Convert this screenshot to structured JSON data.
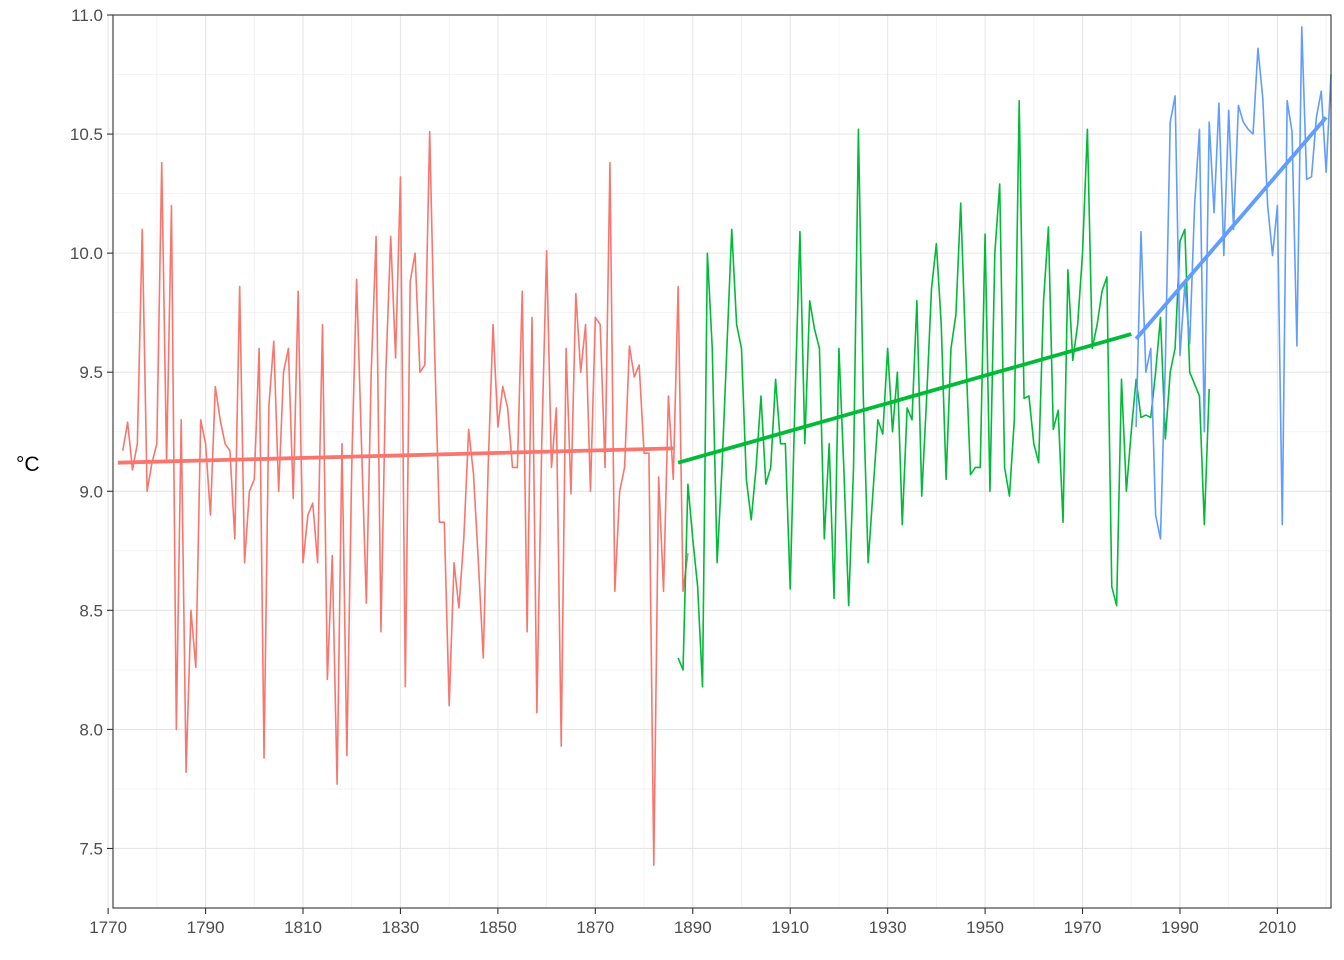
{
  "chart_data": {
    "type": "line",
    "title": "",
    "xlabel": "",
    "ylabel": "°C",
    "xlim": [
      1771,
      2021
    ],
    "ylim": [
      7.25,
      11.0
    ],
    "x_ticks": [
      1770,
      1790,
      1810,
      1830,
      1850,
      1870,
      1890,
      1910,
      1930,
      1950,
      1970,
      1990,
      2010
    ],
    "y_ticks": [
      7.5,
      8.0,
      8.5,
      9.0,
      9.5,
      10.0,
      10.5,
      11.0
    ],
    "grid": true,
    "legend": "none",
    "colors": {
      "series1": "#F8766D",
      "series2": "#00BA38",
      "series3": "#619CFF"
    },
    "series": [
      {
        "start_year": 1773,
        "values": [
          9.17,
          9.29,
          9.09,
          9.2,
          10.1,
          9.0,
          9.12,
          9.2,
          10.38,
          9.12,
          10.2,
          8.0,
          9.3,
          7.82,
          8.5,
          8.26,
          9.3,
          9.2,
          8.9,
          9.44,
          9.3,
          9.2,
          9.17,
          8.8,
          9.86,
          8.7,
          9.0,
          9.05,
          9.6,
          7.88,
          9.36,
          9.63,
          9.0,
          9.5,
          9.6,
          8.97,
          9.84,
          8.7,
          8.9,
          8.95,
          8.7,
          9.7,
          8.21,
          8.73,
          7.77,
          9.2,
          7.89,
          9.1,
          9.89,
          9.2,
          8.53,
          9.5,
          10.07,
          8.41,
          9.5,
          10.07,
          9.56,
          10.32,
          8.18,
          9.88,
          10.0,
          9.5,
          9.53,
          10.51,
          9.6,
          8.87,
          8.87,
          8.1,
          8.7,
          8.51,
          8.8,
          9.26,
          9.07,
          8.7,
          8.3,
          9.1,
          9.7,
          9.27,
          9.44,
          9.35,
          9.1,
          9.1,
          9.84,
          8.41,
          9.73,
          8.07,
          9.2,
          10.01,
          9.1,
          9.35,
          7.93,
          9.6,
          8.99,
          9.83,
          9.5,
          9.7,
          9.0,
          9.73,
          9.7,
          9.1,
          10.38,
          8.58,
          9.0,
          9.1,
          9.61,
          9.48,
          9.53,
          9.16,
          9.16,
          7.43,
          9.06,
          8.58,
          9.4,
          9.05,
          9.86,
          8.58,
          8.74
        ],
        "trend": [
          [
            1772,
            9.12
          ],
          [
            1886,
            9.18
          ]
        ]
      },
      {
        "start_year": 1887,
        "values": [
          8.3,
          8.25,
          9.03,
          8.8,
          8.6,
          8.18,
          10.0,
          9.6,
          8.7,
          9.1,
          9.6,
          10.1,
          9.7,
          9.6,
          9.05,
          8.88,
          9.1,
          9.4,
          9.03,
          9.1,
          9.47,
          9.2,
          9.2,
          8.59,
          9.4,
          10.09,
          9.2,
          9.8,
          9.68,
          9.6,
          8.8,
          9.2,
          8.55,
          9.6,
          9.1,
          8.52,
          9.1,
          10.52,
          9.4,
          8.7,
          9.0,
          9.3,
          9.24,
          9.6,
          9.25,
          9.5,
          8.86,
          9.35,
          9.3,
          9.8,
          8.98,
          9.39,
          9.85,
          10.04,
          9.7,
          9.05,
          9.6,
          9.74,
          10.21,
          9.6,
          9.07,
          9.1,
          9.1,
          10.08,
          9.0,
          10.0,
          10.29,
          9.1,
          8.98,
          9.3,
          10.64,
          9.39,
          9.4,
          9.2,
          9.12,
          9.8,
          10.11,
          9.26,
          9.34,
          8.87,
          9.93,
          9.55,
          9.7,
          10.0,
          10.52,
          9.6,
          9.7,
          9.84,
          9.9,
          8.6,
          8.52,
          9.47,
          9.0,
          9.25,
          9.47,
          9.31,
          9.32,
          9.31,
          9.5,
          9.73,
          9.22,
          9.5,
          9.6,
          10.05,
          10.1,
          9.5,
          9.45,
          9.4,
          8.86,
          9.43
        ],
        "trend": [
          [
            1887,
            9.12
          ],
          [
            1980,
            9.66
          ]
        ]
      },
      {
        "start_year": 1981,
        "values": [
          9.27,
          10.09,
          9.5,
          9.6,
          8.9,
          8.8,
          9.54,
          10.55,
          10.66,
          9.57,
          9.87,
          9.62,
          10.2,
          10.52,
          9.25,
          10.55,
          10.17,
          10.63,
          9.99,
          10.6,
          10.1,
          10.62,
          10.55,
          10.52,
          10.5,
          10.86,
          10.65,
          10.2,
          9.99,
          10.2,
          8.86,
          10.64,
          10.51,
          9.61,
          10.95,
          10.31,
          10.32,
          10.57,
          10.68,
          10.34,
          10.75
        ],
        "trend": [
          [
            1981,
            9.64
          ],
          [
            2020,
            10.57
          ]
        ]
      }
    ]
  }
}
